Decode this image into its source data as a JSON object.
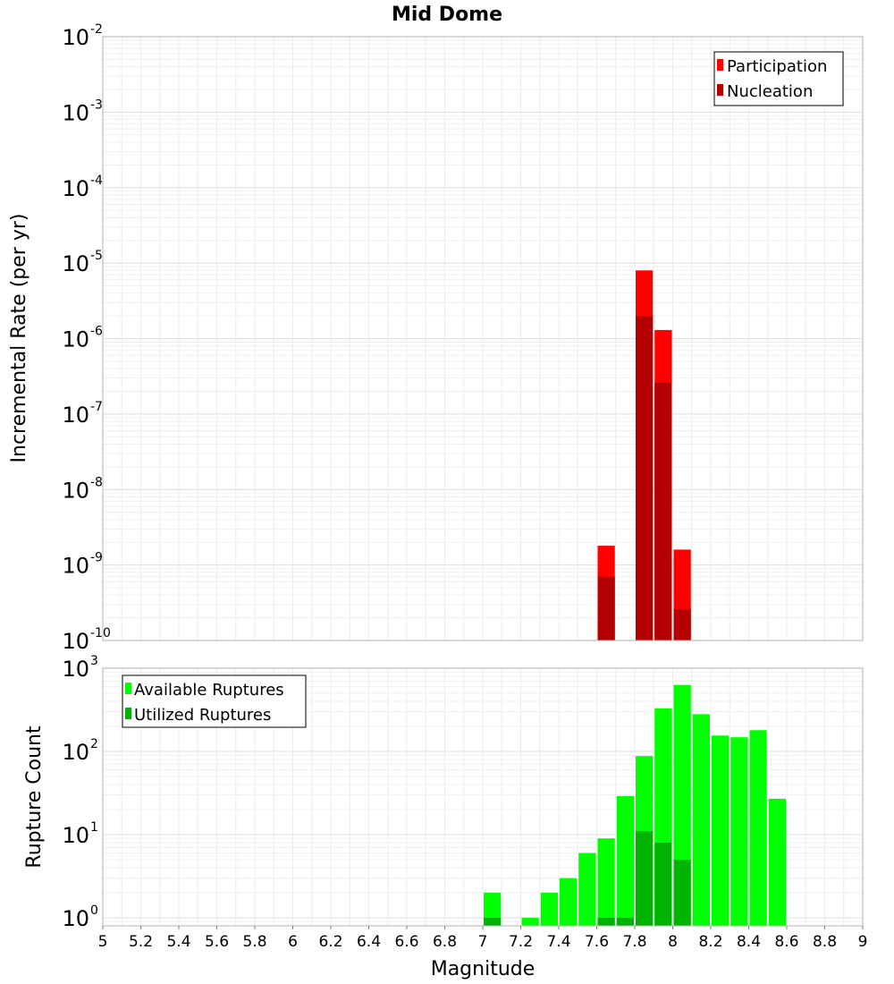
{
  "chart_data": [
    {
      "type": "bar",
      "title": "Mid Dome",
      "xlabel": "",
      "ylabel": "Incremental Rate (per yr)",
      "yscale": "log",
      "ylim_exp": [
        -10,
        -2
      ],
      "xlim": [
        5,
        9
      ],
      "bin_width": 0.1,
      "legend_position": "top-right",
      "series": [
        {
          "name": "Participation",
          "color": "#ff0000",
          "x": [
            7.65,
            7.85,
            7.95,
            8.05
          ],
          "values": [
            1.8e-09,
            8e-06,
            1.3e-06,
            1.6e-09
          ]
        },
        {
          "name": "Nucleation",
          "color": "#b30000",
          "x": [
            7.65,
            7.85,
            7.95,
            8.05
          ],
          "values": [
            7e-10,
            2e-06,
            2.6e-07,
            2.6e-10
          ]
        }
      ],
      "ytick_exponents": [
        -10,
        -9,
        -8,
        -7,
        -6,
        -5,
        -4,
        -3,
        -2
      ]
    },
    {
      "type": "bar",
      "title": "",
      "xlabel": "Magnitude",
      "ylabel": "Rupture Count",
      "yscale": "log",
      "ylim": [
        0.8,
        1000
      ],
      "xlim": [
        5,
        9
      ],
      "bin_width": 0.1,
      "legend_position": "top-left",
      "series": [
        {
          "name": "Available Ruptures",
          "color": "#00ff00",
          "x": [
            7.05,
            7.25,
            7.35,
            7.45,
            7.55,
            7.65,
            7.75,
            7.85,
            7.95,
            8.05,
            8.15,
            8.25,
            8.35,
            8.45,
            8.55
          ],
          "values": [
            2,
            1,
            2,
            3,
            6,
            9,
            29,
            88,
            330,
            630,
            280,
            155,
            148,
            180,
            27
          ]
        },
        {
          "name": "Utilized Ruptures",
          "color": "#00b300",
          "x": [
            7.05,
            7.65,
            7.75,
            7.85,
            7.95,
            8.05
          ],
          "values": [
            1,
            1,
            1,
            11,
            8,
            5
          ]
        }
      ],
      "ytick_exponents": [
        0,
        1,
        2,
        3
      ]
    }
  ],
  "xticks": [
    "5",
    "5.2",
    "5.4",
    "5.6",
    "5.8",
    "6",
    "6.2",
    "6.4",
    "6.6",
    "6.8",
    "7",
    "7.2",
    "7.4",
    "7.6",
    "7.8",
    "8",
    "8.2",
    "8.4",
    "8.6",
    "8.8",
    "9"
  ],
  "ytick_base": "10"
}
